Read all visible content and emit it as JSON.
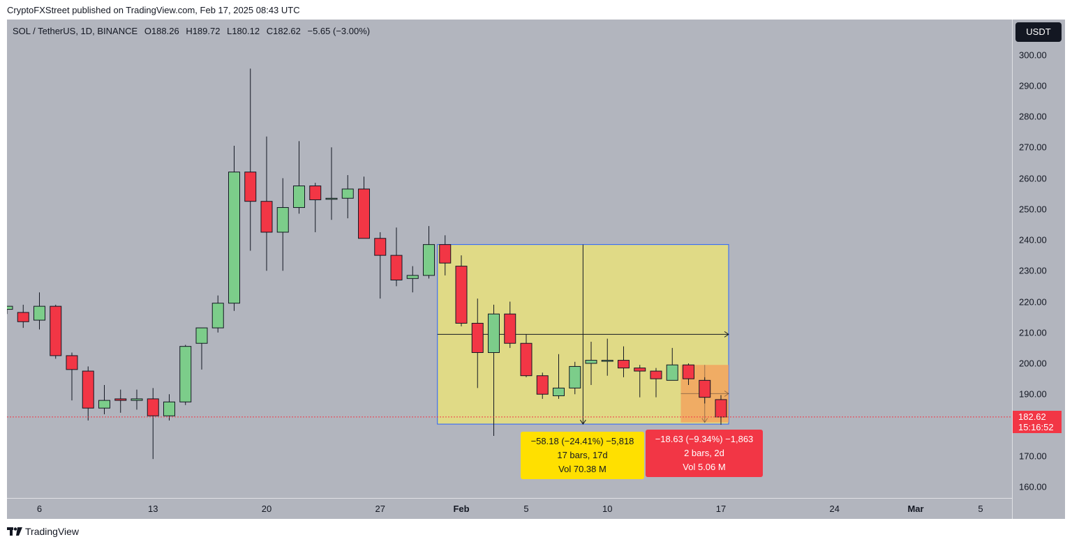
{
  "header": {
    "publish_line": "CryptoFXStreet published on TradingView.com, Feb 17, 2025 08:43 UTC"
  },
  "legend": {
    "symbol": "SOL / TetherUS, 1D, BINANCE",
    "open": "O188.26",
    "high": "H189.72",
    "low": "L180.12",
    "close": "C182.62",
    "change": "−5.65 (−3.00%)"
  },
  "currency_badge": "USDT",
  "last_price": {
    "price": "182.62",
    "countdown": "15:16:52"
  },
  "measure_main": {
    "line1": "−58.18 (−24.41%) −5,818",
    "line2": "17 bars, 17d",
    "line3": "Vol 70.38 M"
  },
  "measure_small": {
    "line1": "−18.63 (−9.34%) −1,863",
    "line2": "2 bars, 2d",
    "line3": "Vol 5.06 M"
  },
  "footer": {
    "brand": "TradingView",
    "logo_icon": "tradingview-logo-icon"
  },
  "colors": {
    "up": "#7ccd8a",
    "down": "#f23645",
    "background": "#b2b5be",
    "measure_main_fill": "#e8e07c",
    "measure_small_fill": "#f2a35e",
    "measure_border": "#2962ff"
  },
  "chart_data": {
    "type": "candlestick",
    "y_ticks": [
      "300.00",
      "290.00",
      "280.00",
      "270.00",
      "260.00",
      "250.00",
      "240.00",
      "230.00",
      "220.00",
      "210.00",
      "200.00",
      "190.00",
      "170.00",
      "160.00"
    ],
    "x_ticks": [
      {
        "label": "6",
        "day": 6,
        "major": false
      },
      {
        "label": "13",
        "day": 13,
        "major": false
      },
      {
        "label": "20",
        "day": 20,
        "major": false
      },
      {
        "label": "27",
        "day": 27,
        "major": false
      },
      {
        "label": "Feb",
        "day": 32,
        "major": true
      },
      {
        "label": "5",
        "day": 36,
        "major": false
      },
      {
        "label": "10",
        "day": 41,
        "major": false
      },
      {
        "label": "17",
        "day": 48,
        "major": false
      },
      {
        "label": "24",
        "day": 55,
        "major": false
      },
      {
        "label": "Mar",
        "day": 60,
        "major": true
      },
      {
        "label": "5",
        "day": 64,
        "major": false
      }
    ],
    "ylim": [
      156,
      307
    ],
    "candles": [
      {
        "date": "2025-01-04",
        "o": 217.5,
        "h": 218.5,
        "l": 216,
        "c": 218.5
      },
      {
        "date": "2025-01-05",
        "o": 216.5,
        "h": 219,
        "l": 211.5,
        "c": 213.5
      },
      {
        "date": "2025-01-06",
        "o": 214,
        "h": 223,
        "l": 211,
        "c": 218.5
      },
      {
        "date": "2025-01-07",
        "o": 218.5,
        "h": 219,
        "l": 201.5,
        "c": 202.5
      },
      {
        "date": "2025-01-08",
        "o": 202.5,
        "h": 203.5,
        "l": 188,
        "c": 198
      },
      {
        "date": "2025-01-09",
        "o": 197.5,
        "h": 199,
        "l": 181.5,
        "c": 185.5
      },
      {
        "date": "2025-01-10",
        "o": 185.5,
        "h": 193,
        "l": 183.5,
        "c": 188
      },
      {
        "date": "2025-01-11",
        "o": 188.5,
        "h": 191.5,
        "l": 184,
        "c": 188
      },
      {
        "date": "2025-01-12",
        "o": 188,
        "h": 191.5,
        "l": 185,
        "c": 188.5
      },
      {
        "date": "2025-01-13",
        "o": 188.5,
        "h": 192,
        "l": 169,
        "c": 183
      },
      {
        "date": "2025-01-14",
        "o": 183,
        "h": 190,
        "l": 181.5,
        "c": 187.5
      },
      {
        "date": "2025-01-15",
        "o": 187.5,
        "h": 206,
        "l": 186.5,
        "c": 205.5
      },
      {
        "date": "2025-01-16",
        "o": 206.5,
        "h": 211.5,
        "l": 198,
        "c": 211.5
      },
      {
        "date": "2025-01-17",
        "o": 211.5,
        "h": 222,
        "l": 210,
        "c": 219.5
      },
      {
        "date": "2025-01-18",
        "o": 219.5,
        "h": 270.5,
        "l": 217,
        "c": 262
      },
      {
        "date": "2025-01-19",
        "o": 262,
        "h": 295.5,
        "l": 236.5,
        "c": 252.5
      },
      {
        "date": "2025-01-20",
        "o": 252.5,
        "h": 273.5,
        "l": 230,
        "c": 242.5
      },
      {
        "date": "2025-01-21",
        "o": 242.5,
        "h": 260,
        "l": 230,
        "c": 250.5
      },
      {
        "date": "2025-01-22",
        "o": 250.5,
        "h": 272,
        "l": 248.5,
        "c": 257.5
      },
      {
        "date": "2025-01-23",
        "o": 257.5,
        "h": 258.5,
        "l": 242.5,
        "c": 253
      },
      {
        "date": "2025-01-24",
        "o": 253.5,
        "h": 270,
        "l": 246.5,
        "c": 253.5
      },
      {
        "date": "2025-01-25",
        "o": 253.5,
        "h": 261,
        "l": 247,
        "c": 256.5
      },
      {
        "date": "2025-01-26",
        "o": 256.5,
        "h": 260.5,
        "l": 240.5,
        "c": 240.5
      },
      {
        "date": "2025-01-27",
        "o": 240.5,
        "h": 242.5,
        "l": 221,
        "c": 235
      },
      {
        "date": "2025-01-28",
        "o": 235,
        "h": 244,
        "l": 225,
        "c": 227
      },
      {
        "date": "2025-01-29",
        "o": 227.5,
        "h": 231.5,
        "l": 223,
        "c": 228.5
      },
      {
        "date": "2025-01-30",
        "o": 228.5,
        "h": 244.5,
        "l": 227.5,
        "c": 238.5
      },
      {
        "date": "2025-01-31",
        "o": 238.5,
        "h": 241.5,
        "l": 228.5,
        "c": 232.5
      },
      {
        "date": "2025-02-01",
        "o": 231.5,
        "h": 235,
        "l": 212,
        "c": 213
      },
      {
        "date": "2025-02-02",
        "o": 213,
        "h": 221,
        "l": 192,
        "c": 203.5
      },
      {
        "date": "2025-02-03",
        "o": 203.5,
        "h": 219,
        "l": 176.5,
        "c": 216
      },
      {
        "date": "2025-02-04",
        "o": 216,
        "h": 220,
        "l": 205,
        "c": 206.5
      },
      {
        "date": "2025-02-05",
        "o": 206.5,
        "h": 209.5,
        "l": 195.5,
        "c": 196
      },
      {
        "date": "2025-02-06",
        "o": 196,
        "h": 197,
        "l": 188.5,
        "c": 190
      },
      {
        "date": "2025-02-07",
        "o": 189.5,
        "h": 203,
        "l": 188.5,
        "c": 192
      },
      {
        "date": "2025-02-08",
        "o": 192,
        "h": 200.5,
        "l": 190,
        "c": 199
      },
      {
        "date": "2025-02-09",
        "o": 200,
        "h": 207,
        "l": 193,
        "c": 201
      },
      {
        "date": "2025-02-10",
        "o": 201,
        "h": 208,
        "l": 196,
        "c": 201
      },
      {
        "date": "2025-02-11",
        "o": 201,
        "h": 205.5,
        "l": 195.5,
        "c": 198.5
      },
      {
        "date": "2025-02-12",
        "o": 198.5,
        "h": 199.5,
        "l": 189,
        "c": 197.5
      },
      {
        "date": "2025-02-13",
        "o": 197.5,
        "h": 198.5,
        "l": 189,
        "c": 195
      },
      {
        "date": "2025-02-14",
        "o": 194.5,
        "h": 205,
        "l": 194.5,
        "c": 199.5
      },
      {
        "date": "2025-02-15",
        "o": 199.5,
        "h": 200,
        "l": 193,
        "c": 195
      },
      {
        "date": "2025-02-16",
        "o": 194.5,
        "h": 195.5,
        "l": 187,
        "c": 189
      },
      {
        "date": "2025-02-17",
        "o": 188.26,
        "h": 189.72,
        "l": 180.12,
        "c": 182.62
      }
    ],
    "measure_main": {
      "start_date": "2025-01-31",
      "end_date": "2025-02-17",
      "from_price": 238.5,
      "to_price": 180.32
    },
    "measure_small": {
      "start_date": "2025-02-15",
      "end_date": "2025-02-17",
      "from_price": 199.5,
      "to_price": 180.87
    },
    "last_price": 182.62
  }
}
